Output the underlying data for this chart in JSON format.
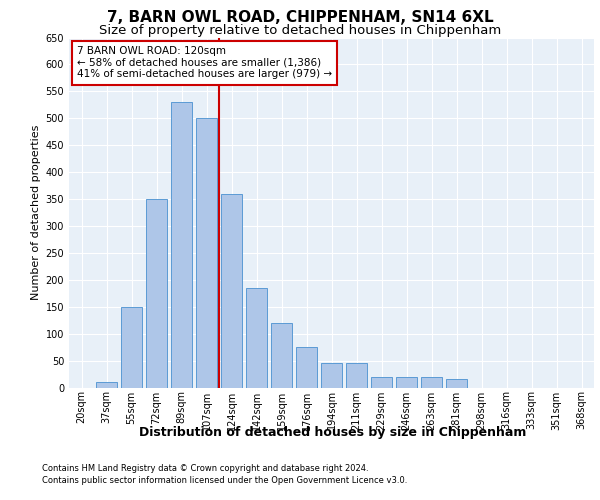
{
  "title": "7, BARN OWL ROAD, CHIPPENHAM, SN14 6XL",
  "subtitle": "Size of property relative to detached houses in Chippenham",
  "xlabel": "Distribution of detached houses by size in Chippenham",
  "ylabel": "Number of detached properties",
  "categories": [
    "20sqm",
    "37sqm",
    "55sqm",
    "72sqm",
    "89sqm",
    "107sqm",
    "124sqm",
    "142sqm",
    "159sqm",
    "176sqm",
    "194sqm",
    "211sqm",
    "229sqm",
    "246sqm",
    "263sqm",
    "281sqm",
    "298sqm",
    "316sqm",
    "333sqm",
    "351sqm",
    "368sqm"
  ],
  "values": [
    0,
    10,
    150,
    350,
    530,
    500,
    360,
    185,
    120,
    75,
    45,
    45,
    20,
    20,
    20,
    15,
    0,
    0,
    0,
    0,
    0
  ],
  "bar_color": "#aec6e8",
  "bar_edge_color": "#5b9bd5",
  "property_line_x": 5.5,
  "property_line_color": "#cc0000",
  "annotation_text": "7 BARN OWL ROAD: 120sqm\n← 58% of detached houses are smaller (1,386)\n41% of semi-detached houses are larger (979) →",
  "annotation_box_color": "#ffffff",
  "annotation_box_edge": "#cc0000",
  "ylim": [
    0,
    650
  ],
  "yticks": [
    0,
    50,
    100,
    150,
    200,
    250,
    300,
    350,
    400,
    450,
    500,
    550,
    600,
    650
  ],
  "footer1": "Contains HM Land Registry data © Crown copyright and database right 2024.",
  "footer2": "Contains public sector information licensed under the Open Government Licence v3.0.",
  "bg_color": "#e8f0f8",
  "fig_bg_color": "#ffffff",
  "title_fontsize": 11,
  "subtitle_fontsize": 9.5,
  "tick_fontsize": 7,
  "ylabel_fontsize": 8,
  "xlabel_fontsize": 9,
  "annotation_fontsize": 7.5,
  "footer_fontsize": 6
}
